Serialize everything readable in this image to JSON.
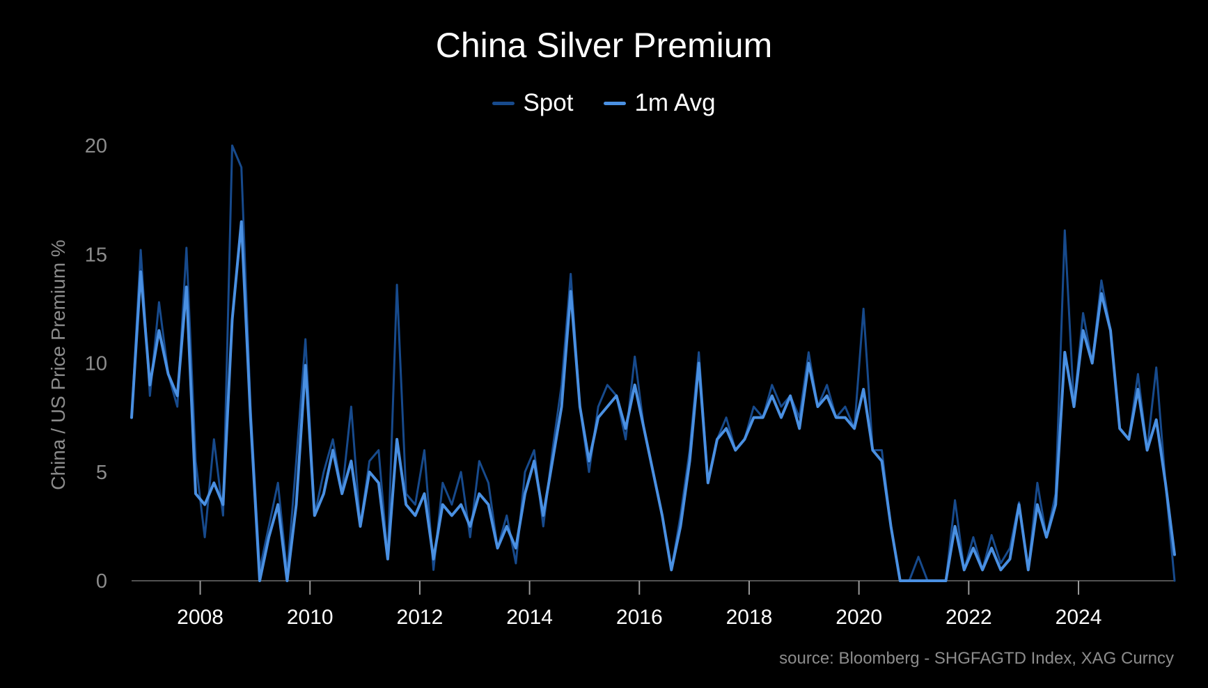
{
  "chart_data": {
    "type": "line",
    "title": "China Silver Premium",
    "ylabel": "China / US Price Premium %",
    "xlabel": "",
    "source": "source: Bloomberg - SHGFAGTD Index, XAG Curncy",
    "ylim": [
      0,
      20
    ],
    "xlim": [
      "2006-10-01",
      "2025-10-01"
    ],
    "x_ticks": [
      "2008",
      "2010",
      "2012",
      "2014",
      "2016",
      "2018",
      "2020",
      "2022",
      "2024"
    ],
    "y_ticks": [
      "0",
      "5",
      "10",
      "15",
      "20"
    ],
    "grid": false,
    "legend_position": "top-center",
    "series": [
      {
        "name": "Spot",
        "color": "#174a8c",
        "x": [
          "2006-10",
          "2006-12",
          "2007-02",
          "2007-04",
          "2007-06",
          "2007-08",
          "2007-10",
          "2007-12",
          "2008-02",
          "2008-04",
          "2008-06",
          "2008-08",
          "2008-10",
          "2008-12",
          "2009-02",
          "2009-04",
          "2009-06",
          "2009-08",
          "2009-10",
          "2009-12",
          "2010-02",
          "2010-04",
          "2010-06",
          "2010-08",
          "2010-10",
          "2010-12",
          "2011-02",
          "2011-04",
          "2011-06",
          "2011-08",
          "2011-10",
          "2011-12",
          "2012-02",
          "2012-04",
          "2012-06",
          "2012-08",
          "2012-10",
          "2012-12",
          "2013-02",
          "2013-04",
          "2013-06",
          "2013-08",
          "2013-10",
          "2013-12",
          "2014-02",
          "2014-04",
          "2014-06",
          "2014-08",
          "2014-10",
          "2014-12",
          "2015-02",
          "2015-04",
          "2015-06",
          "2015-08",
          "2015-10",
          "2015-12",
          "2016-02",
          "2016-04",
          "2016-06",
          "2016-08",
          "2016-10",
          "2016-12",
          "2017-02",
          "2017-04",
          "2017-06",
          "2017-08",
          "2017-10",
          "2017-12",
          "2018-02",
          "2018-04",
          "2018-06",
          "2018-08",
          "2018-10",
          "2018-12",
          "2019-02",
          "2019-04",
          "2019-06",
          "2019-08",
          "2019-10",
          "2019-12",
          "2020-02",
          "2020-04",
          "2020-06",
          "2020-08",
          "2020-10",
          "2020-12",
          "2021-02",
          "2021-04",
          "2021-06",
          "2021-08",
          "2021-10",
          "2021-12",
          "2022-02",
          "2022-04",
          "2022-06",
          "2022-08",
          "2022-10",
          "2022-12",
          "2023-02",
          "2023-04",
          "2023-06",
          "2023-08",
          "2023-10",
          "2023-12",
          "2024-02",
          "2024-04",
          "2024-06",
          "2024-08",
          "2024-10",
          "2024-12",
          "2025-02",
          "2025-04",
          "2025-06",
          "2025-08",
          "2025-10"
        ],
        "values": [
          7.5,
          15.2,
          8.5,
          12.8,
          9.5,
          8.0,
          15.3,
          5.5,
          2.0,
          6.5,
          3.0,
          20.0,
          19.0,
          8.0,
          0.5,
          2.5,
          4.5,
          0.3,
          5.5,
          11.1,
          3.0,
          5.0,
          6.5,
          4.0,
          8.0,
          2.5,
          5.5,
          6.0,
          1.0,
          13.6,
          4.0,
          3.5,
          6.0,
          0.5,
          4.5,
          3.5,
          5.0,
          2.0,
          5.5,
          4.5,
          1.5,
          3.0,
          0.8,
          5.0,
          6.0,
          2.5,
          6.0,
          9.0,
          14.1,
          8.0,
          5.0,
          8.0,
          9.0,
          8.5,
          6.5,
          10.3,
          7.0,
          5.0,
          3.0,
          0.5,
          3.0,
          6.0,
          10.5,
          4.5,
          6.5,
          7.5,
          6.0,
          6.5,
          8.0,
          7.5,
          9.0,
          8.0,
          8.5,
          7.5,
          10.5,
          8.0,
          9.0,
          7.5,
          8.0,
          7.0,
          12.5,
          6.0,
          6.0,
          2.5,
          0.0,
          0.0,
          1.1,
          0.0,
          0.0,
          0.0,
          3.7,
          0.5,
          2.0,
          0.5,
          2.1,
          0.8,
          1.5,
          3.6,
          0.5,
          4.5,
          2.0,
          4.0,
          16.1,
          8.0,
          12.3,
          10.0,
          13.8,
          11.5,
          7.0,
          6.5,
          9.5,
          6.0,
          9.8,
          4.5,
          0.0
        ]
      },
      {
        "name": "1m Avg",
        "color": "#4a90e2",
        "x": [
          "2006-10",
          "2006-12",
          "2007-02",
          "2007-04",
          "2007-06",
          "2007-08",
          "2007-10",
          "2007-12",
          "2008-02",
          "2008-04",
          "2008-06",
          "2008-08",
          "2008-10",
          "2008-12",
          "2009-02",
          "2009-04",
          "2009-06",
          "2009-08",
          "2009-10",
          "2009-12",
          "2010-02",
          "2010-04",
          "2010-06",
          "2010-08",
          "2010-10",
          "2010-12",
          "2011-02",
          "2011-04",
          "2011-06",
          "2011-08",
          "2011-10",
          "2011-12",
          "2012-02",
          "2012-04",
          "2012-06",
          "2012-08",
          "2012-10",
          "2012-12",
          "2013-02",
          "2013-04",
          "2013-06",
          "2013-08",
          "2013-10",
          "2013-12",
          "2014-02",
          "2014-04",
          "2014-06",
          "2014-08",
          "2014-10",
          "2014-12",
          "2015-02",
          "2015-04",
          "2015-06",
          "2015-08",
          "2015-10",
          "2015-12",
          "2016-02",
          "2016-04",
          "2016-06",
          "2016-08",
          "2016-10",
          "2016-12",
          "2017-02",
          "2017-04",
          "2017-06",
          "2017-08",
          "2017-10",
          "2017-12",
          "2018-02",
          "2018-04",
          "2018-06",
          "2018-08",
          "2018-10",
          "2018-12",
          "2019-02",
          "2019-04",
          "2019-06",
          "2019-08",
          "2019-10",
          "2019-12",
          "2020-02",
          "2020-04",
          "2020-06",
          "2020-08",
          "2020-10",
          "2020-12",
          "2021-02",
          "2021-04",
          "2021-06",
          "2021-08",
          "2021-10",
          "2021-12",
          "2022-02",
          "2022-04",
          "2022-06",
          "2022-08",
          "2022-10",
          "2022-12",
          "2023-02",
          "2023-04",
          "2023-06",
          "2023-08",
          "2023-10",
          "2023-12",
          "2024-02",
          "2024-04",
          "2024-06",
          "2024-08",
          "2024-10",
          "2024-12",
          "2025-02",
          "2025-04",
          "2025-06",
          "2025-08",
          "2025-10"
        ],
        "values": [
          7.5,
          14.2,
          9.0,
          11.5,
          9.5,
          8.5,
          13.5,
          4.0,
          3.5,
          4.5,
          3.5,
          12.0,
          16.5,
          7.5,
          0.0,
          2.0,
          3.5,
          0.0,
          3.5,
          9.9,
          3.0,
          4.0,
          6.0,
          4.0,
          5.5,
          2.5,
          5.0,
          4.5,
          1.0,
          6.5,
          3.5,
          3.0,
          4.0,
          1.0,
          3.5,
          3.0,
          3.5,
          2.5,
          4.0,
          3.5,
          1.5,
          2.5,
          1.5,
          4.0,
          5.5,
          3.0,
          5.5,
          8.0,
          13.3,
          8.0,
          5.5,
          7.5,
          8.0,
          8.5,
          7.0,
          9.0,
          7.0,
          5.0,
          3.0,
          0.5,
          2.5,
          5.5,
          10.0,
          4.5,
          6.5,
          7.0,
          6.0,
          6.5,
          7.5,
          7.5,
          8.5,
          7.5,
          8.5,
          7.0,
          10.0,
          8.0,
          8.5,
          7.5,
          7.5,
          7.0,
          8.8,
          6.0,
          5.5,
          2.5,
          0.0,
          0.0,
          0.0,
          0.0,
          0.0,
          0.0,
          2.5,
          0.5,
          1.5,
          0.5,
          1.5,
          0.5,
          1.0,
          3.5,
          0.5,
          3.5,
          2.0,
          3.5,
          10.5,
          8.0,
          11.5,
          10.0,
          13.2,
          11.5,
          7.0,
          6.5,
          8.8,
          6.0,
          7.4,
          4.5,
          1.2
        ]
      }
    ]
  }
}
